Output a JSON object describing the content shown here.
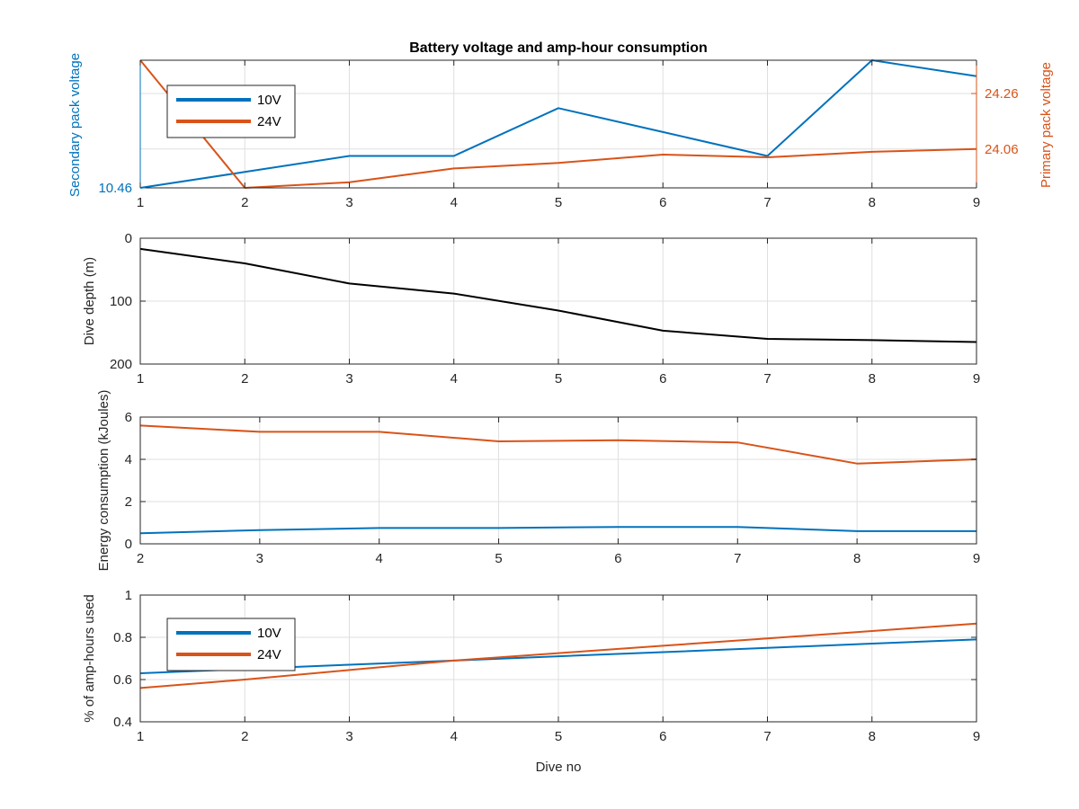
{
  "figure": {
    "title": "Battery voltage and amp-hour consumption"
  },
  "chart_data": [
    {
      "type": "line",
      "title": "Battery voltage and amp-hour consumption",
      "xlabel": "",
      "ylabel": "Secondary pack voltage",
      "ylabel_right": "Primary pack voltage",
      "xlim": [
        1,
        9
      ],
      "xticks": [
        1,
        2,
        3,
        4,
        5,
        6,
        7,
        8,
        9
      ],
      "ylim_left": [
        10.46,
        10.54
      ],
      "yticks_left": [
        10.46
      ],
      "yticklabels_left": [
        "10.46"
      ],
      "ylim_right": [
        23.92,
        24.38
      ],
      "yticks_right": [
        24.06,
        24.26
      ],
      "yticklabels_right": [
        "24.06",
        "24.26"
      ],
      "grid": true,
      "legend_position": "top-left",
      "x": [
        1,
        2,
        3,
        4,
        5,
        6,
        7,
        8,
        9
      ],
      "series": [
        {
          "name": "10V",
          "axis": "left",
          "color": "#0072BD",
          "values": [
            10.46,
            10.47,
            10.48,
            10.48,
            10.51,
            10.495,
            10.48,
            10.54,
            10.53
          ]
        },
        {
          "name": "24V",
          "axis": "right",
          "color": "#D95319",
          "values": [
            24.38,
            23.92,
            23.94,
            23.99,
            24.01,
            24.04,
            24.03,
            24.05,
            24.06
          ]
        }
      ]
    },
    {
      "type": "line",
      "xlabel": "",
      "ylabel": "Dive depth (m)",
      "xlim": [
        1,
        9
      ],
      "xticks": [
        1,
        2,
        3,
        4,
        5,
        6,
        7,
        8,
        9
      ],
      "ylim": [
        0,
        200
      ],
      "y_reversed": true,
      "yticks": [
        0,
        100,
        200
      ],
      "grid": true,
      "x": [
        1,
        2,
        3,
        4,
        5,
        6,
        7,
        8,
        9
      ],
      "series": [
        {
          "name": "",
          "color": "#000000",
          "values": [
            17,
            40,
            72,
            88,
            115,
            147,
            160,
            162,
            165
          ]
        }
      ]
    },
    {
      "type": "line",
      "xlabel": "",
      "ylabel": "Energy consumption (kJoules)",
      "xlim": [
        2,
        9
      ],
      "xticks": [
        2,
        3,
        4,
        5,
        6,
        7,
        8,
        9
      ],
      "ylim": [
        0,
        6
      ],
      "yticks": [
        0,
        2,
        4,
        6
      ],
      "grid": true,
      "x": [
        2,
        3,
        4,
        5,
        6,
        7,
        8,
        9
      ],
      "series": [
        {
          "name": "",
          "color": "#0072BD",
          "values": [
            0.5,
            0.65,
            0.75,
            0.75,
            0.8,
            0.8,
            0.6,
            0.6
          ]
        },
        {
          "name": "",
          "color": "#D95319",
          "values": [
            5.6,
            5.3,
            5.3,
            4.85,
            4.9,
            4.8,
            3.8,
            4.0
          ]
        }
      ]
    },
    {
      "type": "line",
      "xlabel": "Dive no",
      "ylabel": "% of amp-hours used",
      "xlim": [
        1,
        9
      ],
      "xticks": [
        1,
        2,
        3,
        4,
        5,
        6,
        7,
        8,
        9
      ],
      "ylim": [
        0.4,
        1
      ],
      "yticks": [
        0.4,
        0.6,
        0.8,
        1
      ],
      "grid": true,
      "legend_position": "top-left",
      "x": [
        1,
        2,
        3,
        4,
        5,
        6,
        7,
        8,
        9
      ],
      "series": [
        {
          "name": "10V",
          "color": "#0072BD",
          "values": [
            0.63,
            0.65,
            0.67,
            0.69,
            0.71,
            0.73,
            0.75,
            0.77,
            0.79
          ]
        },
        {
          "name": "24V",
          "color": "#D95319",
          "values": [
            0.56,
            0.6,
            0.645,
            0.69,
            0.725,
            0.76,
            0.795,
            0.83,
            0.865
          ]
        }
      ]
    }
  ]
}
